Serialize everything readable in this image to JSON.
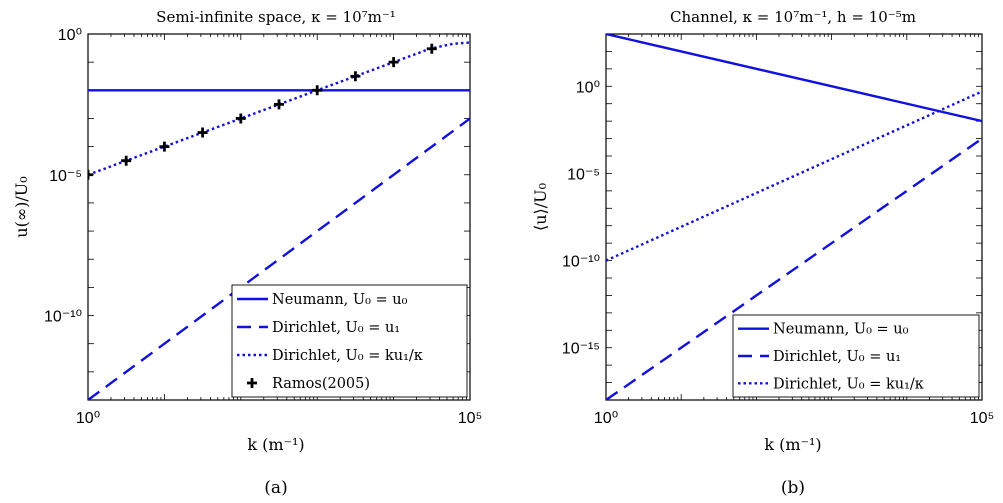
{
  "colors": {
    "series": "#1010e0",
    "marker": "#000000",
    "axis": "#000000",
    "background": "#ffffff"
  },
  "chart_data": [
    {
      "type": "line",
      "panel_label": "(a)",
      "title": "Semi-infinite space, κ = 10⁷m⁻¹",
      "xlabel": "k (m⁻¹)",
      "ylabel": "u(∞)/U₀",
      "x_scale": "log",
      "y_scale": "log",
      "xlim": [
        1,
        100000
      ],
      "ylim": [
        1e-13,
        1
      ],
      "x_ticks": [
        {
          "value": 1,
          "label": "10⁰"
        },
        {
          "value": 100000,
          "label": "10⁵"
        }
      ],
      "y_ticks": [
        {
          "value": 1e-10,
          "label": "10⁻¹⁰"
        },
        {
          "value": 1e-05,
          "label": "10⁻⁵"
        },
        {
          "value": 1,
          "label": "10⁰"
        }
      ],
      "grid": false,
      "legend_position": "bottom-right",
      "series": [
        {
          "name": "Neumann, U₀ = u₀",
          "style": "solid",
          "x": [
            1,
            100000
          ],
          "y": [
            0.01,
            0.01
          ]
        },
        {
          "name": "Dirichlet, U₀ = u₁",
          "style": "dashed",
          "x": [
            1,
            10,
            100,
            1000,
            10000,
            100000
          ],
          "y": [
            1e-13,
            1e-11,
            1e-09,
            1e-07,
            1e-05,
            0.001
          ]
        },
        {
          "name": "Dirichlet, U₀ = ku₁/κ",
          "style": "dotted",
          "x": [
            1,
            10,
            100,
            1000,
            10000,
            30000,
            60000,
            100000
          ],
          "y": [
            1e-05,
            0.0001,
            0.001,
            0.01,
            0.1,
            0.3,
            0.45,
            0.5
          ]
        },
        {
          "name": "Ramos(2005)",
          "style": "markers",
          "x": [
            1,
            3.16,
            10,
            31.6,
            100,
            316,
            1000,
            3162,
            10000,
            31623
          ],
          "y": [
            1e-05,
            3.16e-05,
            0.0001,
            0.000316,
            0.001,
            0.00316,
            0.01,
            0.0316,
            0.1,
            0.3
          ]
        }
      ]
    },
    {
      "type": "line",
      "panel_label": "(b)",
      "title": "Channel, κ = 10⁷m⁻¹,  h = 10⁻⁵m",
      "xlabel": "k (m⁻¹)",
      "ylabel": "⟨u⟩/U₀",
      "x_scale": "log",
      "y_scale": "log",
      "xlim": [
        1,
        100000
      ],
      "ylim": [
        1e-18,
        1000
      ],
      "x_ticks": [
        {
          "value": 1,
          "label": "10⁰"
        },
        {
          "value": 100000,
          "label": "10⁵"
        }
      ],
      "y_ticks": [
        {
          "value": 1e-15,
          "label": "10⁻¹⁵"
        },
        {
          "value": 1e-10,
          "label": "10⁻¹⁰"
        },
        {
          "value": 1e-05,
          "label": "10⁻⁵"
        },
        {
          "value": 1,
          "label": "10⁰"
        }
      ],
      "grid": false,
      "legend_position": "bottom-right",
      "series": [
        {
          "name": "Neumann, U₀ = u₀",
          "style": "solid",
          "x": [
            1,
            100000
          ],
          "y": [
            1000,
            0.01
          ]
        },
        {
          "name": "Dirichlet, U₀ = u₁",
          "style": "dashed",
          "x": [
            1,
            100000
          ],
          "y": [
            1e-18,
            0.001
          ]
        },
        {
          "name": "Dirichlet, U₀ = ku₁/κ",
          "style": "dotted",
          "x": [
            1,
            100000
          ],
          "y": [
            1e-10,
            0.5
          ]
        }
      ]
    }
  ]
}
